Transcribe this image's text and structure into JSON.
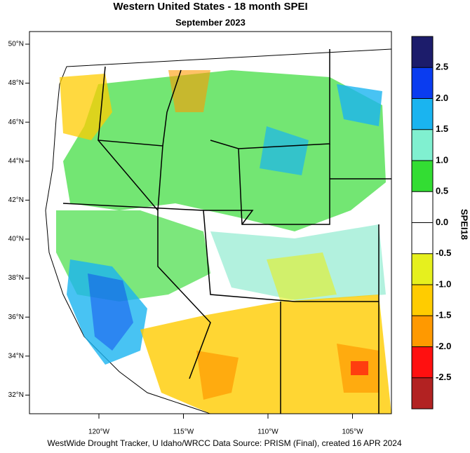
{
  "title": "Western United States - 18 month SPEI",
  "subtitle": "September 2023",
  "map": {
    "lat_labels": [
      "50°N",
      "48°N",
      "46°N",
      "44°N",
      "42°N",
      "40°N",
      "38°N",
      "36°N",
      "34°N",
      "32°N"
    ],
    "lon_labels": [
      "120°W",
      "115°W",
      "110°W",
      "105°W"
    ]
  },
  "colorbar": {
    "title": "SPEI18",
    "colors": [
      "#1c1c6b",
      "#0a3cf0",
      "#1ab4f0",
      "#80f0d0",
      "#33dd33",
      "#ffffff",
      "#ffffff",
      "#e6f01e",
      "#ffcc00",
      "#ff9900",
      "#ff1010",
      "#b22222"
    ],
    "labels": [
      "2.5",
      "2.0",
      "1.5",
      "1.0",
      "0.5",
      "0.0",
      "-0.5",
      "-1.0",
      "-1.5",
      "-2.0",
      "-2.5"
    ]
  },
  "footer": "WestWide Drought Tracker, U Idaho/WRCC Data Source: PRISM (Final), created 16 APR 2024"
}
